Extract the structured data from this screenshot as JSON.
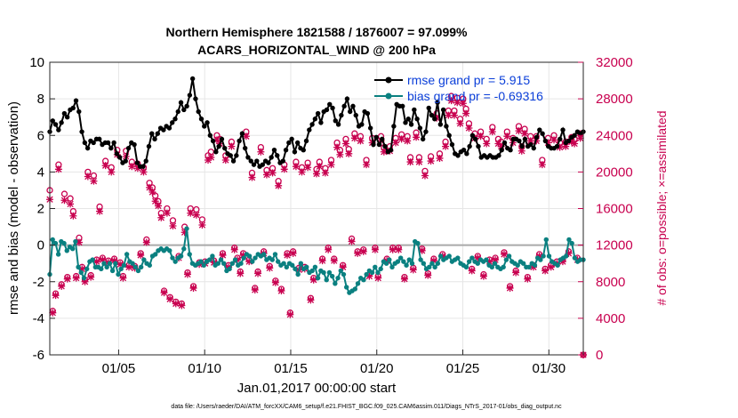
{
  "chart_data": {
    "type": "line",
    "title_line1": "Northern Hemisphere 1821588 / 1876007 = 97.099%",
    "title_line2": "ACARS_HORIZONTAL_WIND @ 200 hPa",
    "ylabel_left": "rmse and bias (model - observation)",
    "ylabel_right": "# of obs: o=possible; ×=assimilated",
    "xlabel": "Jan.01,2017 00:00:00 start",
    "footer": "data file: /Users/raeder/DAI/ATM_forcXX/CAM6_setup/f.e21.FHIST_BGC.f09_025.CAM6assim.011/Diags_NTrS_2017-01/obs_diag_output.nc",
    "xlim": [
      1,
      32
    ],
    "ylim_left": [
      -6,
      10
    ],
    "ylim_right": [
      0,
      32000
    ],
    "x_ticks": [
      5,
      10,
      15,
      20,
      25,
      30
    ],
    "x_tick_labels": [
      "01/05",
      "01/10",
      "01/15",
      "01/20",
      "01/25",
      "01/30"
    ],
    "y_left_ticks": [
      -6,
      -4,
      -2,
      0,
      2,
      4,
      6,
      8,
      10
    ],
    "y_left_tick_labels": [
      "-6",
      "-4",
      "-2",
      "0",
      "2",
      "4",
      "6",
      "8",
      "10"
    ],
    "y_right_ticks": [
      0,
      4000,
      8000,
      12000,
      16000,
      20000,
      24000,
      28000,
      32000
    ],
    "y_right_tick_labels": [
      "0",
      "4000",
      "8000",
      "12000",
      "16000",
      "20000",
      "24000",
      "28000",
      "32000"
    ],
    "legend": [
      {
        "label": "rmse grand pr = 5.915",
        "color": "#000000"
      },
      {
        "label": "bias grand pr = -0.69316",
        "color": "#0a8080"
      }
    ],
    "series": [
      {
        "name": "rmse",
        "color": "#000000",
        "axis": "left",
        "values": [
          6.2,
          6.8,
          6.6,
          6.3,
          6.7,
          7.2,
          7.0,
          7.4,
          7.5,
          7.9,
          7.3,
          6.2,
          5.6,
          5.3,
          5.7,
          5.6,
          5.8,
          5.8,
          5.5,
          5.6,
          5.6,
          5.3,
          5.6,
          5.0,
          4.8,
          4.5,
          4.6,
          5.3,
          5.6,
          5.5,
          4.5,
          4.3,
          4.3,
          4.6,
          5.4,
          6.1,
          5.8,
          6.1,
          6.4,
          6.3,
          6.5,
          6.4,
          6.7,
          6.9,
          7.3,
          7.8,
          7.4,
          7.6,
          8.2,
          9.1,
          8.0,
          7.3,
          6.9,
          6.5,
          6.7,
          6.0,
          5.7,
          5.1,
          5.4,
          5.8,
          5.3,
          5.0,
          4.9,
          4.6,
          4.9,
          5.7,
          6.1,
          5.3,
          4.8,
          4.6,
          4.4,
          4.6,
          4.3,
          4.4,
          4.6,
          4.5,
          4.8,
          5.2,
          4.9,
          4.5,
          4.6,
          5.2,
          5.6,
          5.8,
          5.1,
          5.6,
          5.3,
          5.2,
          5.7,
          6.3,
          6.6,
          6.9,
          7.2,
          6.7,
          7.3,
          7.4,
          7.7,
          7.5,
          6.8,
          6.6,
          7.1,
          7.6,
          8.0,
          7.3,
          7.6,
          7.1,
          6.5,
          6.6,
          7.3,
          7.2,
          6.4,
          5.5,
          5.9,
          5.5,
          5.8,
          5.4,
          5.1,
          5.2,
          6.5,
          7.7,
          7.6,
          7.6,
          6.7,
          6.9,
          6.6,
          7.4,
          6.9,
          6.4,
          5.8,
          6.2,
          7.5,
          7.1,
          6.9,
          7.8,
          6.6,
          7.4,
          6.5,
          6.0,
          5.5,
          5.0,
          4.9,
          5.1,
          5.2,
          5.0,
          5.4,
          6.0,
          5.8,
          5.4,
          4.8,
          4.9,
          4.8,
          4.9,
          4.8,
          4.8,
          4.9,
          5.2,
          5.6,
          5.3,
          5.2,
          5.8,
          5.8,
          5.7,
          5.4,
          5.8,
          5.4,
          5.5,
          5.3,
          5.9,
          6.3,
          6.1,
          5.7,
          5.4,
          5.3,
          5.3,
          5.4,
          5.8,
          6.3,
          5.6,
          5.7,
          5.9,
          6.0,
          6.2,
          6.1,
          6.2
        ]
      },
      {
        "name": "bias",
        "color": "#0a8080",
        "axis": "left",
        "values": [
          -1.6,
          0.3,
          0.1,
          -0.5,
          0.2,
          0.1,
          -0.3,
          -0.1,
          -0.2,
          0.2,
          -1.2,
          -1.5,
          -1.8,
          -1.3,
          -0.9,
          -0.8,
          -1.2,
          -1.2,
          -1.3,
          -1.0,
          -1.2,
          -1.0,
          -1.4,
          -1.0,
          -1.6,
          -1.3,
          -1.1,
          -0.5,
          -0.9,
          -1.0,
          -1.2,
          -1.4,
          -1.2,
          -0.8,
          -1.0,
          -1.1,
          -0.6,
          -0.5,
          -0.3,
          -0.2,
          -0.3,
          -0.2,
          -0.3,
          -0.7,
          -0.9,
          -0.7,
          -0.6,
          -0.2,
          0.9,
          -0.5,
          -1.0,
          -1.1,
          -1.0,
          -0.9,
          -1.1,
          -0.9,
          -0.8,
          -0.6,
          -1.1,
          -1.0,
          -0.8,
          -1.0,
          -1.4,
          -1.3,
          -1.0,
          -0.8,
          -1.1,
          -1.0,
          -0.7,
          -0.5,
          -0.6,
          -0.9,
          -0.7,
          -0.5,
          -0.6,
          -0.5,
          -0.8,
          -0.7,
          -0.8,
          -0.5,
          -0.9,
          -1.1,
          -1.0,
          -1.2,
          -1.0,
          -1.1,
          -1.3,
          -1.6,
          -1.0,
          -1.3,
          -1.2,
          -1.5,
          -1.4,
          -1.2,
          -1.8,
          -1.4,
          -1.5,
          -1.9,
          -1.5,
          -1.7,
          -2.1,
          -1.8,
          -1.4,
          -1.6,
          -2.3,
          -2.6,
          -2.5,
          -2.4,
          -2.1,
          -1.8,
          -1.9,
          -1.6,
          -1.4,
          -1.5,
          -1.2,
          -1.5,
          -1.3,
          -0.9,
          -1.0,
          -0.8,
          -1.2,
          -1.0,
          -0.9,
          -0.7,
          -0.9,
          -1.1,
          -0.8,
          -1.0,
          0.2,
          0.1,
          -0.8,
          -1.0,
          -1.3,
          -1.2,
          -1.0,
          -1.2,
          -1.0,
          -0.6,
          -0.8,
          -0.7,
          -0.6,
          -0.9,
          -0.8,
          -0.7,
          -1.0,
          -1.1,
          -1.2,
          -0.9,
          -0.7,
          -0.9,
          -1.0,
          -0.8,
          -0.9,
          -0.8,
          -1.1,
          -1.2,
          -1.0,
          -1.2,
          -1.3,
          -1.2,
          -0.8,
          -0.6,
          -0.9,
          -1.0,
          -1.1,
          -0.9,
          -1.0,
          -1.2,
          -1.2,
          -1.0,
          -1.1,
          -0.7,
          -0.8,
          -0.6,
          0.3,
          -0.6,
          -0.9,
          -1.0,
          -1.1,
          -0.8,
          -0.7,
          -0.6,
          0.3,
          0.1,
          -0.7,
          -0.9,
          -0.8,
          -0.8
        ]
      },
      {
        "name": "obs_possible",
        "color": "#c8004f",
        "axis": "right",
        "marker": "o",
        "values": [
          18000,
          4800,
          6700,
          20800,
          7700,
          17600,
          8500,
          17100,
          15700,
          8600,
          12800,
          9600,
          8200,
          20000,
          8700,
          19600,
          10400,
          16200,
          10600,
          21200,
          10300,
          20500,
          10500,
          22400,
          10100,
          8600,
          22300,
          9800,
          21100,
          9700,
          20900,
          11100,
          20500,
          12600,
          18800,
          18300,
          17400,
          16800,
          15500,
          7000,
          16000,
          6300,
          14700,
          5800,
          10800,
          5600,
          14000,
          9000,
          16000,
          7500,
          15900,
          10100,
          14800,
          10200,
          21800,
          22200,
          10300,
          24000,
          23600,
          11100,
          21800,
          9800,
          23300,
          11700,
          10600,
          9100,
          11100,
          24400,
          10400,
          19900,
          7300,
          9100,
          22700,
          11300,
          20200,
          9700,
          20400,
          8100,
          19000,
          7200,
          20800,
          11100,
          4600,
          11300,
          21100,
          9500,
          20500,
          9600,
          21000,
          6200,
          8400,
          20300,
          21100,
          10500,
          20400,
          11700,
          21300,
          10500,
          23200,
          22400,
          9800,
          23600,
          22500,
          12700,
          24200,
          11300,
          23900,
          11500,
          21300,
          8800,
          23700,
          11700,
          8600,
          23900,
          22700,
          10500,
          22800,
          11700,
          23700,
          11700,
          24100,
          8500,
          23900,
          21600,
          9500,
          24300,
          21600,
          11600,
          20100,
          8900,
          21700,
          10500,
          26400,
          22000,
          11000,
          23300,
          26700,
          28300,
          26700,
          28100,
          25800,
          28000,
          26900,
          25300,
          9400,
          24200,
          10800,
          24400,
          8800,
          23600,
          10400,
          24900,
          10600,
          23600,
          23300,
          11200,
          24400,
          7500,
          23700,
          9200,
          25000,
          22800,
          24700,
          8500,
          23900,
          9800,
          23900,
          11000,
          21300,
          9400,
          23700,
          9800,
          24000,
          10200,
          23200,
          10400,
          23300,
          11300,
          23800,
          23600,
          10600,
          24200,
          0
        ]
      },
      {
        "name": "obs_assimilated",
        "color": "#c8004f",
        "axis": "right",
        "marker": "x",
        "values": [
          17000,
          4600,
          6500,
          20300,
          7500,
          16900,
          8300,
          16500,
          15200,
          8400,
          12300,
          9400,
          8000,
          19500,
          8500,
          19000,
          10200,
          15700,
          10400,
          20700,
          10100,
          20000,
          10300,
          21900,
          9900,
          8400,
          21700,
          9600,
          20600,
          9500,
          20400,
          10900,
          20000,
          12300,
          18300,
          17800,
          16800,
          16300,
          15000,
          6800,
          15500,
          6100,
          14100,
          5600,
          10600,
          5400,
          13400,
          8800,
          15500,
          7300,
          15300,
          9900,
          14200,
          10000,
          21300,
          21600,
          10100,
          23500,
          23100,
          10900,
          21300,
          9600,
          22800,
          11500,
          10400,
          8900,
          10900,
          23900,
          10200,
          19400,
          7100,
          8900,
          22200,
          11100,
          19700,
          9500,
          19900,
          7900,
          18500,
          7000,
          20300,
          10900,
          4400,
          11100,
          20600,
          9300,
          20000,
          9400,
          20500,
          6000,
          8200,
          19800,
          20600,
          10300,
          19900,
          11500,
          20800,
          10300,
          22700,
          21900,
          9600,
          23100,
          22000,
          12400,
          23700,
          11100,
          23400,
          11300,
          20800,
          8600,
          23200,
          11500,
          8400,
          23400,
          22200,
          10300,
          22300,
          11500,
          23200,
          11500,
          23600,
          8300,
          23400,
          21100,
          9300,
          23800,
          21100,
          11400,
          19600,
          8700,
          21200,
          10300,
          25900,
          21500,
          10800,
          22800,
          26200,
          27800,
          26200,
          27600,
          25300,
          27500,
          26400,
          24800,
          9200,
          23700,
          10600,
          23900,
          8600,
          23100,
          10200,
          24400,
          10400,
          23100,
          22800,
          11000,
          23900,
          7300,
          23200,
          9000,
          24500,
          22300,
          24200,
          8300,
          23400,
          9600,
          23400,
          10800,
          20800,
          9200,
          23200,
          9600,
          23500,
          10000,
          22700,
          10200,
          22800,
          11100,
          23300,
          23100,
          10400,
          23700,
          0
        ]
      }
    ]
  }
}
